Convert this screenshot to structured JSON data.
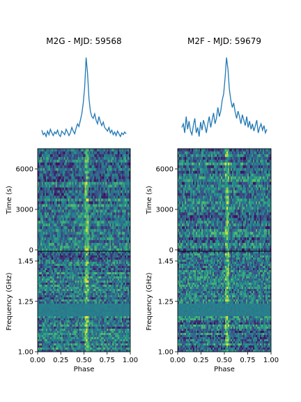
{
  "chart_data": [
    {
      "type": "heatmap",
      "title": "M2G - MJD: 59568",
      "xlabel": "Phase",
      "xlim": [
        0.0,
        1.0
      ],
      "x_ticks": [
        "0.00",
        "0.25",
        "0.50",
        "0.75",
        "1.00"
      ],
      "pulse_profile": {
        "type": "line",
        "color": "#1f77b4",
        "peak_phase": 0.52,
        "values": [
          0.15,
          0.1,
          0.12,
          0.08,
          0.14,
          0.1,
          0.16,
          0.12,
          0.09,
          0.13,
          0.11,
          0.15,
          0.1,
          0.08,
          0.14,
          0.12,
          0.1,
          0.16,
          0.13,
          0.09,
          0.12,
          0.18,
          0.14,
          0.11,
          0.17,
          0.22,
          0.19,
          0.26,
          0.33,
          0.45,
          0.62,
          0.95,
          0.78,
          0.5,
          0.36,
          0.3,
          0.28,
          0.33,
          0.26,
          0.22,
          0.3,
          0.24,
          0.2,
          0.24,
          0.18,
          0.16,
          0.14,
          0.18,
          0.12,
          0.15,
          0.1,
          0.13,
          0.09,
          0.14,
          0.11,
          0.08,
          0.12,
          0.1,
          0.13,
          0.11
        ]
      },
      "time_panel": {
        "ylabel": "Time (s)",
        "ylim": [
          0,
          7300
        ],
        "y_ticks": [
          0,
          3000,
          6000
        ]
      },
      "frequency_panel": {
        "ylabel": "Frequency (GHz)",
        "ylim": [
          1.0,
          1.5
        ],
        "y_ticks": [
          "1.00",
          "1.25",
          "1.45"
        ]
      }
    },
    {
      "type": "heatmap",
      "title": "M2F - MJD: 59679",
      "xlabel": "Phase",
      "xlim": [
        0.0,
        1.0
      ],
      "x_ticks": [
        "0.00",
        "0.25",
        "0.50",
        "0.75",
        "1.00"
      ],
      "pulse_profile": {
        "type": "line",
        "color": "#1f77b4",
        "peak_phase": 0.52,
        "values": [
          0.18,
          0.22,
          0.12,
          0.3,
          0.16,
          0.25,
          0.14,
          0.1,
          0.2,
          0.28,
          0.12,
          0.18,
          0.08,
          0.24,
          0.15,
          0.26,
          0.2,
          0.12,
          0.22,
          0.3,
          0.18,
          0.26,
          0.34,
          0.22,
          0.28,
          0.4,
          0.3,
          0.36,
          0.48,
          0.55,
          0.72,
          0.95,
          0.82,
          0.6,
          0.48,
          0.4,
          0.45,
          0.35,
          0.28,
          0.36,
          0.3,
          0.22,
          0.32,
          0.26,
          0.2,
          0.3,
          0.18,
          0.25,
          0.16,
          0.22,
          0.14,
          0.2,
          0.26,
          0.12,
          0.18,
          0.22,
          0.15,
          0.2,
          0.12,
          0.16
        ]
      },
      "time_panel": {
        "ylabel": "Time (s)",
        "ylim": [
          0,
          7300
        ],
        "y_ticks": [
          0,
          3000,
          6000
        ]
      },
      "frequency_panel": {
        "ylabel": "Frequency (GHz)",
        "ylim": [
          1.0,
          1.5
        ],
        "y_ticks": [
          "1.00",
          "1.25",
          "1.45"
        ]
      }
    }
  ]
}
